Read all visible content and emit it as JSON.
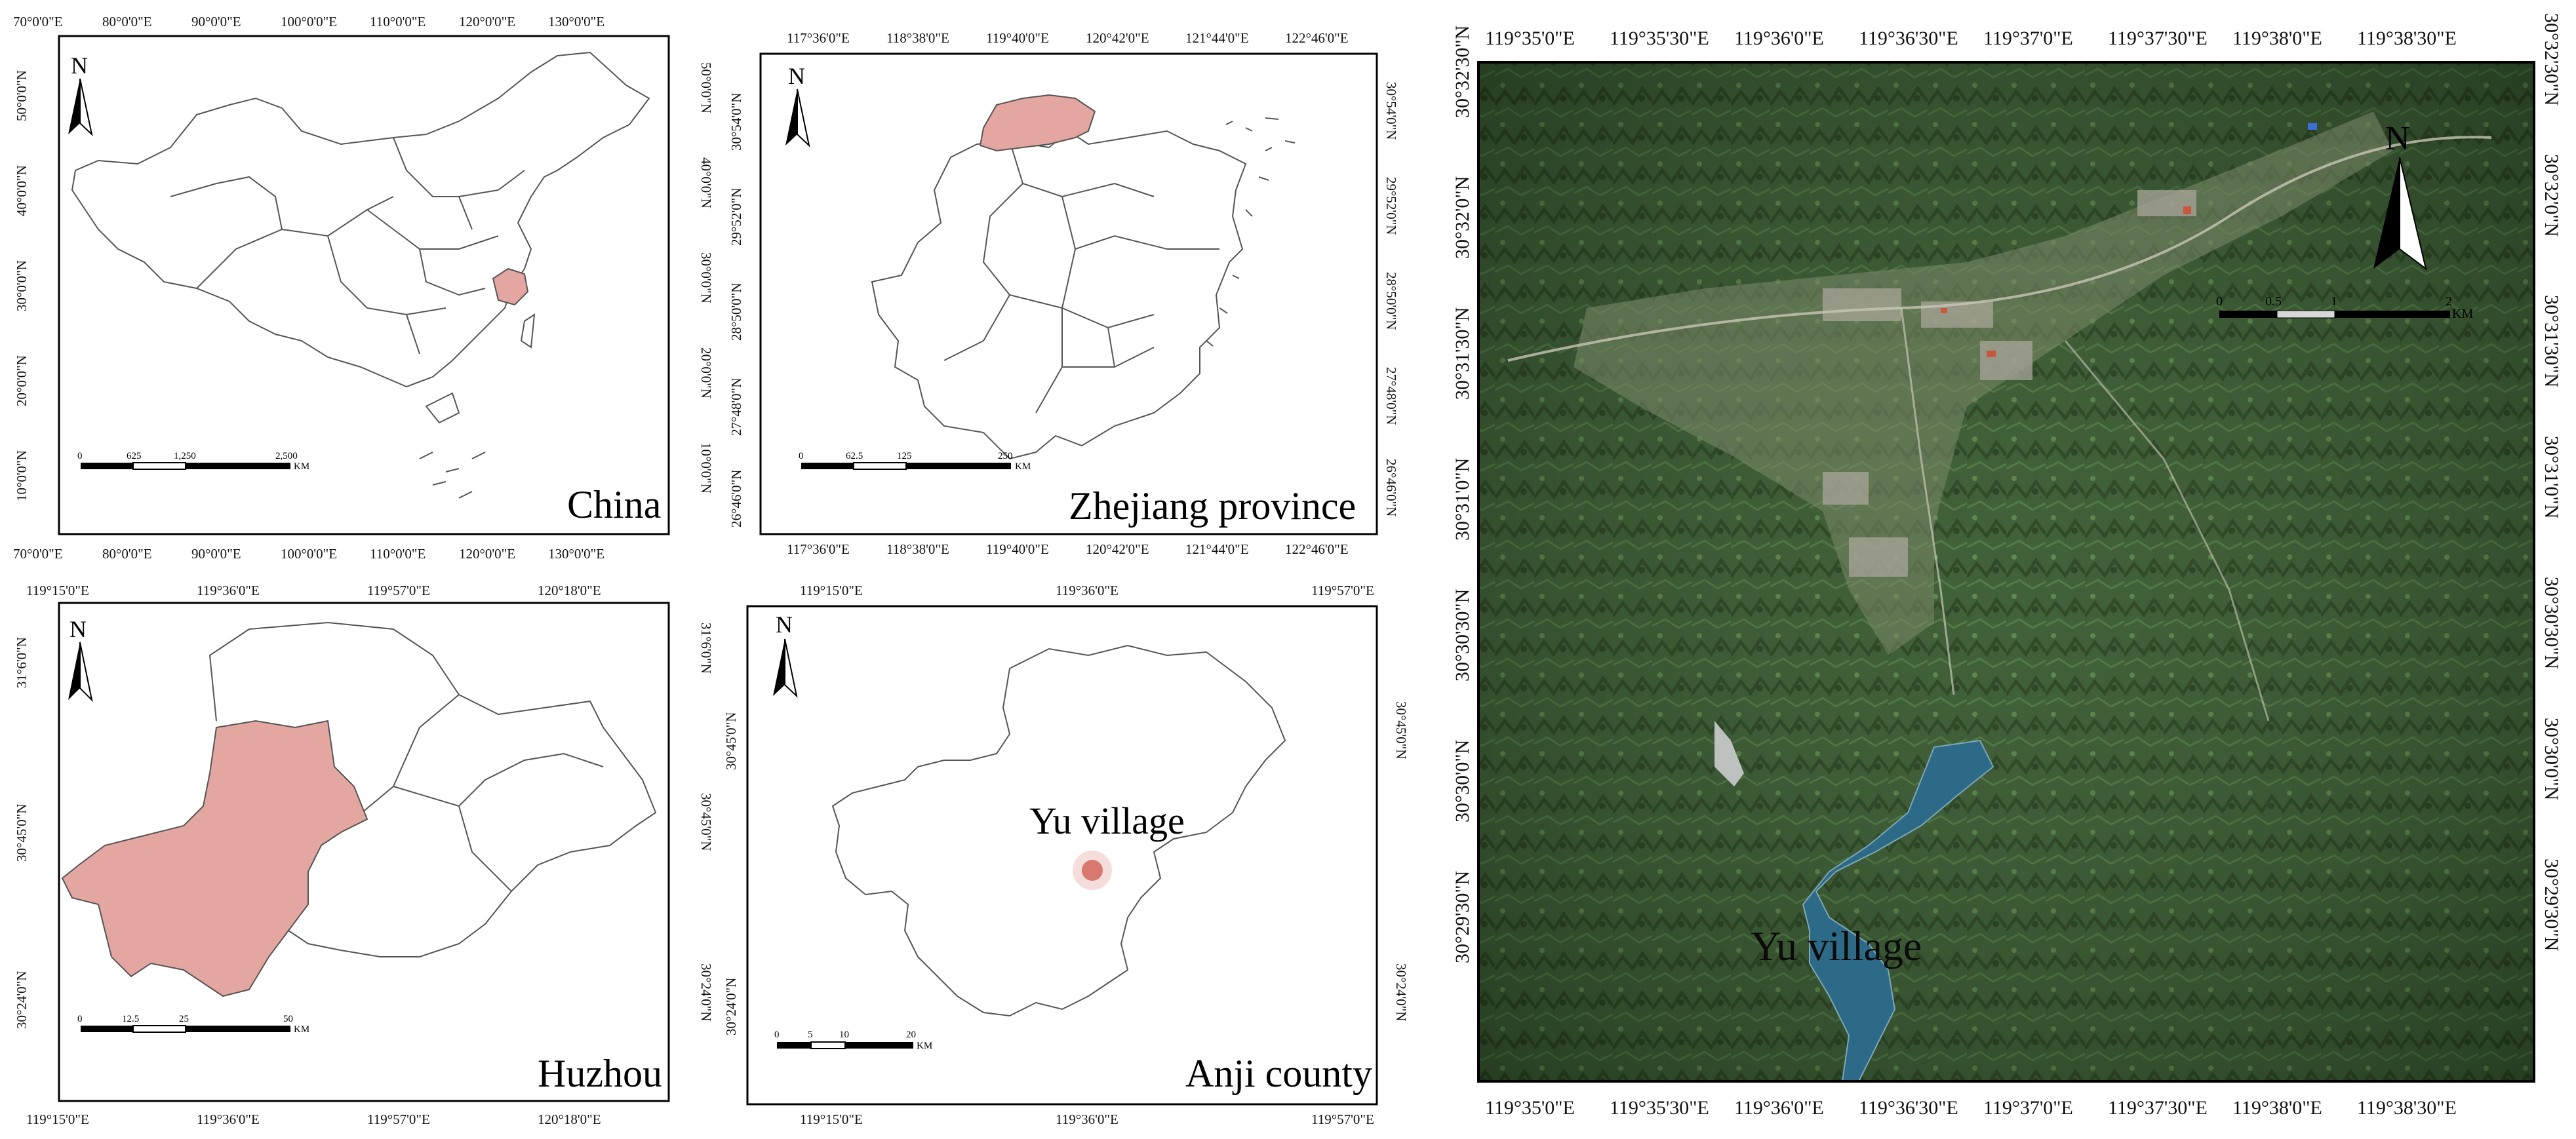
{
  "colors": {
    "highlight": "#e4a6a0",
    "marker": "#d9786e",
    "frame": "#000000"
  },
  "panels": {
    "china": {
      "title": "China",
      "north": "N",
      "top_ticks": [
        "70°0'0\"E",
        "80°0'0\"E",
        "90°0'0\"E",
        "100°0'0\"E",
        "110°0'0\"E",
        "120°0'0\"E",
        "130°0'0\"E"
      ],
      "bottom_ticks": [
        "70°0'0\"E",
        "80°0'0\"E",
        "90°0'0\"E",
        "100°0'0\"E",
        "110°0'0\"E",
        "120°0'0\"E",
        "130°0'0\"E"
      ],
      "left_ticks": [
        "50°0'0\"N",
        "40°0'0\"N",
        "30°0'0\"N",
        "20°0'0\"N",
        "10°0'0\"N"
      ],
      "right_ticks": [
        "50°0'0\"N",
        "40°0'0\"N",
        "30°0'0\"N",
        "20°0'0\"N",
        "10°0'0\"N"
      ],
      "scale": [
        "0",
        "625",
        "1,250",
        "2,500"
      ],
      "unit": "KM"
    },
    "zhejiang": {
      "title": "Zhejiang province",
      "north": "N",
      "top_ticks": [
        "117°36'0\"E",
        "118°38'0\"E",
        "119°40'0\"E",
        "120°42'0\"E",
        "121°44'0\"E",
        "122°46'0\"E"
      ],
      "bottom_ticks": [
        "117°36'0\"E",
        "118°38'0\"E",
        "119°40'0\"E",
        "120°42'0\"E",
        "121°44'0\"E",
        "122°46'0\"E"
      ],
      "left_ticks": [
        "30°54'0\"N",
        "29°52'0\"N",
        "28°50'0\"N",
        "27°48'0\"N",
        "26°46'0\"N"
      ],
      "right_ticks": [
        "30°54'0\"N",
        "29°52'0\"N",
        "28°50'0\"N",
        "27°48'0\"N",
        "26°46'0\"N"
      ],
      "scale": [
        "0",
        "62.5",
        "125",
        "250"
      ],
      "unit": "KM"
    },
    "huzhou": {
      "title": "Huzhou",
      "north": "N",
      "top_ticks": [
        "119°15'0\"E",
        "119°36'0\"E",
        "119°57'0\"E",
        "120°18'0\"E"
      ],
      "bottom_ticks": [
        "119°15'0\"E",
        "119°36'0\"E",
        "119°57'0\"E",
        "120°18'0\"E"
      ],
      "left_ticks": [
        "31°6'0\"N",
        "30°45'0\"N",
        "30°24'0\"N"
      ],
      "right_ticks": [
        "31°6'0\"N",
        "30°45'0\"N",
        "30°24'0\"N"
      ],
      "scale": [
        "0",
        "12.5",
        "25",
        "50"
      ],
      "unit": "KM"
    },
    "anji": {
      "title": "Anji county",
      "north": "N",
      "marker_label": "Yu village",
      "top_ticks": [
        "119°15'0\"E",
        "119°36'0\"E",
        "119°57'0\"E"
      ],
      "bottom_ticks": [
        "119°15'0\"E",
        "119°36'0\"E",
        "119°57'0\"E"
      ],
      "left_ticks": [
        "30°45'0\"N",
        "30°24'0\"N"
      ],
      "right_ticks": [
        "30°45'0\"N",
        "30°24'0\"N"
      ],
      "scale": [
        "0",
        "5",
        "10",
        "20"
      ],
      "unit": "KM"
    },
    "satellite": {
      "label": "Yu village",
      "north": "N",
      "top_ticks": [
        "119°35'0\"E",
        "119°35'30\"E",
        "119°36'0\"E",
        "119°36'30\"E",
        "119°37'0\"E",
        "119°37'30\"E",
        "119°38'0\"E",
        "119°38'30\"E"
      ],
      "bottom_ticks": [
        "119°35'0\"E",
        "119°35'30\"E",
        "119°36'0\"E",
        "119°36'30\"E",
        "119°37'0\"E",
        "119°37'30\"E",
        "119°38'0\"E",
        "119°38'30\"E"
      ],
      "left_ticks": [
        "30°32'30\"N",
        "30°32'0\"N",
        "30°31'30\"N",
        "30°31'0\"N",
        "30°30'30\"N",
        "30°30'0\"N",
        "30°29'30\"N"
      ],
      "right_ticks": [
        "30°32'30\"N",
        "30°32'0\"N",
        "30°31'30\"N",
        "30°31'0\"N",
        "30°30'30\"N",
        "30°30'0\"N",
        "30°29'30\"N"
      ],
      "scale": [
        "0",
        "0.5",
        "1",
        "2"
      ],
      "unit": "KM"
    }
  }
}
